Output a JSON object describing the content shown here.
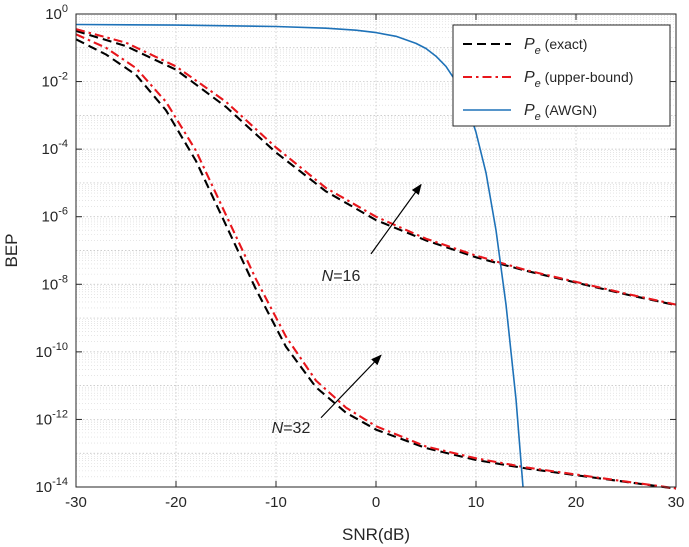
{
  "chart_data": {
    "type": "line",
    "title": "",
    "xlabel": "SNR(dB)",
    "ylabel": "BEP",
    "xlim": [
      -30,
      30
    ],
    "ylim_log10": [
      -14,
      0
    ],
    "yscale": "log",
    "grid": true,
    "minor_grid": true,
    "legend_position": "top-right",
    "x_ticks": [
      -30,
      -20,
      -10,
      0,
      10,
      20,
      30
    ],
    "x_tick_labels": [
      "-30",
      "-20",
      "-10",
      "0",
      "10",
      "20",
      "30"
    ],
    "y_tick_exponents": [
      0,
      -2,
      -4,
      -6,
      -8,
      -10,
      -12,
      -14
    ],
    "y_tick_base": "10",
    "y_tick_exponent_labels": [
      "0",
      "-2",
      "-4",
      "-6",
      "-8",
      "-10",
      "-12",
      "-14"
    ],
    "legend": [
      {
        "symbol": "P",
        "subscript": "e",
        "text": "(exact)",
        "series": "exact_n16"
      },
      {
        "symbol": "P",
        "subscript": "e",
        "text": "(upper-bound)",
        "series": "upper_n16"
      },
      {
        "symbol": "P",
        "subscript": "e",
        "text": "(AWGN)",
        "series": "awgn"
      }
    ],
    "series": [
      {
        "name": "exact_n16",
        "group": "N=16",
        "color": "#000000",
        "dash": "dashed",
        "x": [
          -30,
          -25,
          -20,
          -15,
          -10,
          -5,
          0,
          5,
          10,
          15,
          20,
          25,
          30
        ],
        "y_log10": [
          -0.5,
          -0.95,
          -1.65,
          -2.75,
          -4.1,
          -5.25,
          -6.1,
          -6.7,
          -7.2,
          -7.6,
          -7.95,
          -8.3,
          -8.62
        ]
      },
      {
        "name": "upper_n16",
        "group": "N=16",
        "color": "#e8161c",
        "dash": "dashdot",
        "x": [
          -30,
          -25,
          -20,
          -15,
          -10,
          -5,
          0,
          5,
          10,
          15,
          20,
          25,
          30
        ],
        "y_log10": [
          -0.45,
          -0.85,
          -1.55,
          -2.6,
          -3.95,
          -5.15,
          -6.0,
          -6.65,
          -7.15,
          -7.58,
          -7.93,
          -8.28,
          -8.6
        ]
      },
      {
        "name": "exact_n32",
        "group": "N=32",
        "color": "#000000",
        "dash": "dashed",
        "x": [
          -30,
          -27,
          -24,
          -21,
          -18,
          -15,
          -12,
          -9,
          -6,
          -3,
          0,
          5,
          10,
          15,
          20,
          25,
          30
        ],
        "y_log10": [
          -0.75,
          -1.2,
          -1.8,
          -2.85,
          -4.35,
          -6.25,
          -8.15,
          -9.85,
          -11.05,
          -11.8,
          -12.3,
          -12.85,
          -13.2,
          -13.45,
          -13.65,
          -13.85,
          -14.05
        ]
      },
      {
        "name": "upper_n32",
        "group": "N=32",
        "color": "#e8161c",
        "dash": "dashdot",
        "x": [
          -30,
          -27,
          -24,
          -21,
          -18,
          -15,
          -12,
          -9,
          -6,
          -3,
          0,
          5,
          10,
          15,
          20,
          25,
          30
        ],
        "y_log10": [
          -0.6,
          -1.0,
          -1.6,
          -2.6,
          -4.05,
          -5.95,
          -7.85,
          -9.55,
          -10.85,
          -11.65,
          -12.2,
          -12.8,
          -13.15,
          -13.42,
          -13.63,
          -13.84,
          -14.04
        ]
      },
      {
        "name": "awgn",
        "group": "",
        "color": "#1e72b8",
        "dash": "solid",
        "x": [
          -30,
          -20,
          -10,
          -5,
          -2,
          0,
          2,
          4,
          5,
          6,
          7,
          8,
          9,
          10,
          11,
          12,
          13,
          14,
          14.7
        ],
        "y_log10": [
          -0.31,
          -0.33,
          -0.37,
          -0.42,
          -0.48,
          -0.55,
          -0.66,
          -0.87,
          -1.02,
          -1.25,
          -1.55,
          -2.0,
          -2.6,
          -3.5,
          -4.7,
          -6.4,
          -8.6,
          -11.4,
          -14.0
        ]
      }
    ],
    "annotations": [
      {
        "label_italic": "N",
        "label_rest": "=16",
        "label_x": -3.5,
        "label_y_log10": -7.9,
        "arrow_from": [
          -0.5,
          -7.1
        ],
        "arrow_to": [
          4.5,
          -5.05
        ]
      },
      {
        "label_italic": "N",
        "label_rest": "=32",
        "label_x": -8.5,
        "label_y_log10": -12.4,
        "arrow_from": [
          -5.5,
          -11.95
        ],
        "arrow_to": [
          0.5,
          -10.1
        ]
      }
    ]
  }
}
